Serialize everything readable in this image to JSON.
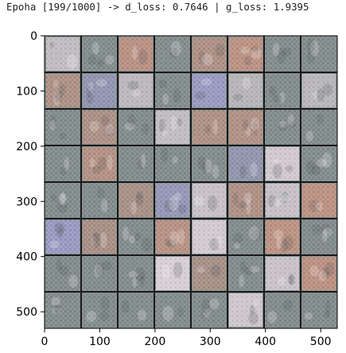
{
  "log_line": "Epoha [199/1000] -> d_loss: 0.7646 | g_loss: 1.9395",
  "chart_data": {
    "type": "heatmap",
    "title": "",
    "xlabel": "",
    "ylabel": "",
    "xlim": [
      0,
      530
    ],
    "ylim": [
      530,
      0
    ],
    "x_ticks": [
      0,
      100,
      200,
      300,
      400,
      500
    ],
    "y_ticks": [
      0,
      100,
      200,
      300,
      400,
      500
    ],
    "grid": false,
    "image_grid": {
      "rows": 8,
      "cols": 8
    }
  },
  "colors": {
    "frame": "#000000",
    "separator": "#1a1a1a",
    "tile_base": "#808a8a",
    "tile_warm": "#c0907f",
    "tile_pale": "#e0d4dc",
    "tile_blue": "#9a9ac8"
  }
}
